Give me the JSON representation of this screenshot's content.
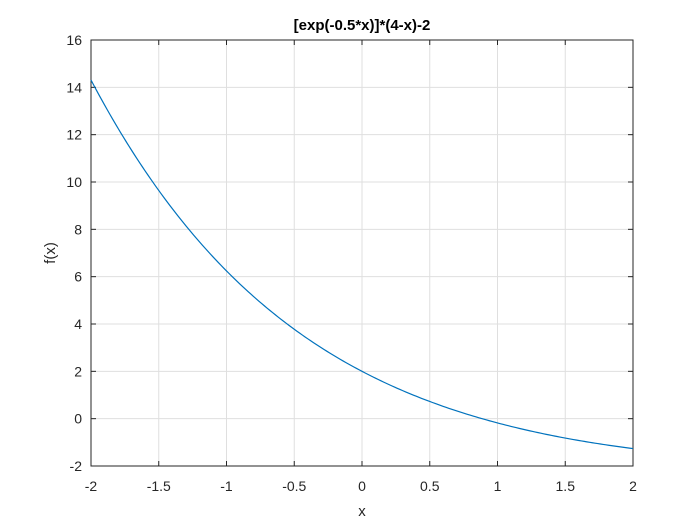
{
  "chart_data": {
    "type": "line",
    "title": "[exp(-0.5*x)]*(4-x)-2",
    "xlabel": "x",
    "ylabel": "f(x)",
    "xlim": [
      -2,
      2
    ],
    "ylim": [
      -2,
      16
    ],
    "grid": true,
    "xticks": [
      -2,
      -1.5,
      -1,
      -0.5,
      0,
      0.5,
      1,
      1.5,
      2
    ],
    "xtick_labels": [
      "-2",
      "-1.5",
      "-1",
      "-0.5",
      "0",
      "0.5",
      "1",
      "1.5",
      "2"
    ],
    "yticks": [
      -2,
      0,
      2,
      4,
      6,
      8,
      10,
      12,
      14,
      16
    ],
    "ytick_labels": [
      "-2",
      "0",
      "2",
      "4",
      "6",
      "8",
      "10",
      "12",
      "14",
      "16"
    ],
    "series": [
      {
        "color": "#0072BD",
        "x": [
          -2,
          -1.75,
          -1.5,
          -1.25,
          -1,
          -0.75,
          -0.5,
          -0.25,
          0,
          0.25,
          0.5,
          0.75,
          1,
          1.25,
          1.5,
          1.75,
          2
        ],
        "y": [
          14.31,
          11.28,
          8.8,
          6.77,
          5.42,
          5.47,
          3.78,
          2.62,
          2.0,
          1.33,
          0.73,
          0.25,
          -0.18,
          -0.59,
          -0.93,
          -1.21,
          -1.26
        ]
      }
    ]
  }
}
